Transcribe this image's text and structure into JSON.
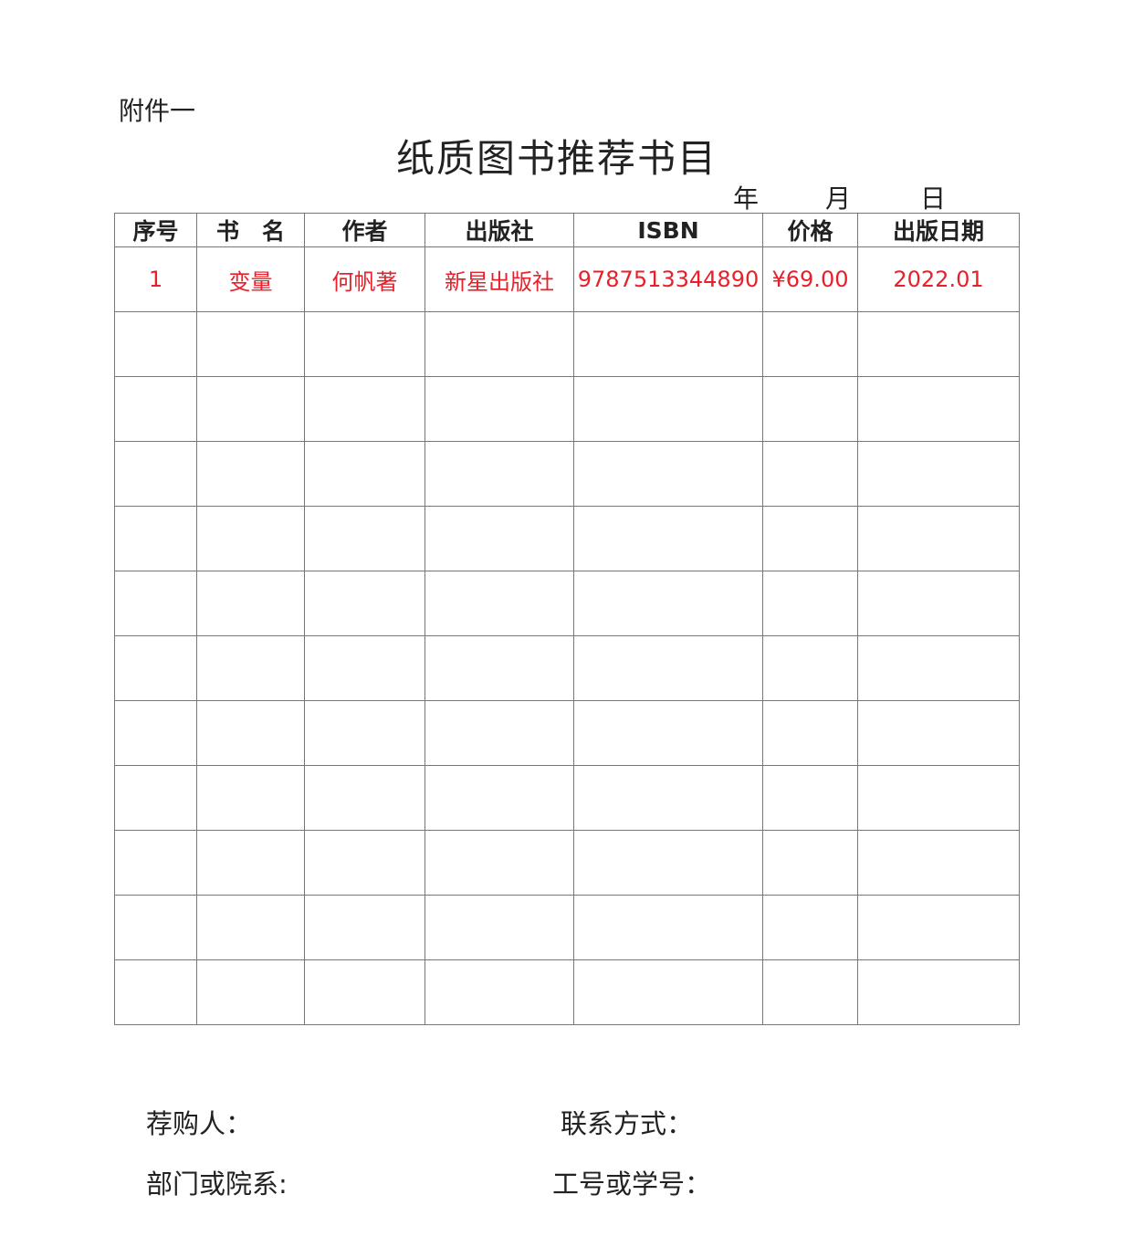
{
  "attachment_label": "附件一",
  "title": "纸质图书推荐书目",
  "date_labels": {
    "year": "年",
    "month": "月",
    "day": "日"
  },
  "table": {
    "headers": [
      "序号",
      "书　名",
      "作者",
      "出版社",
      "ISBN",
      "价格",
      "出版日期"
    ],
    "rows": [
      [
        "1",
        "变量",
        "何帆著",
        "新星出版社",
        "9787513344890",
        "¥69.00",
        "2022.01"
      ],
      [
        "",
        "",
        "",
        "",
        "",
        "",
        ""
      ],
      [
        "",
        "",
        "",
        "",
        "",
        "",
        ""
      ],
      [
        "",
        "",
        "",
        "",
        "",
        "",
        ""
      ],
      [
        "",
        "",
        "",
        "",
        "",
        "",
        ""
      ],
      [
        "",
        "",
        "",
        "",
        "",
        "",
        ""
      ],
      [
        "",
        "",
        "",
        "",
        "",
        "",
        ""
      ],
      [
        "",
        "",
        "",
        "",
        "",
        "",
        ""
      ],
      [
        "",
        "",
        "",
        "",
        "",
        "",
        ""
      ],
      [
        "",
        "",
        "",
        "",
        "",
        "",
        ""
      ],
      [
        "",
        "",
        "",
        "",
        "",
        "",
        ""
      ],
      [
        "",
        "",
        "",
        "",
        "",
        "",
        ""
      ]
    ]
  },
  "footer": {
    "recommender": "荐购人：",
    "contact": "联系方式：",
    "department": "部门或院系:",
    "id_number": "工号或学号："
  },
  "colors": {
    "filled_text": "#e8202a",
    "border": "#777777"
  }
}
